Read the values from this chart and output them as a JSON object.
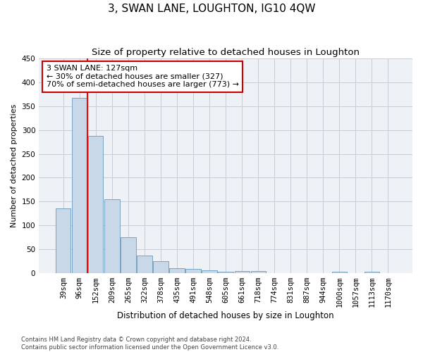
{
  "title": "3, SWAN LANE, LOUGHTON, IG10 4QW",
  "subtitle": "Size of property relative to detached houses in Loughton",
  "xlabel": "Distribution of detached houses by size in Loughton",
  "ylabel": "Number of detached properties",
  "categories": [
    "39sqm",
    "96sqm",
    "152sqm",
    "209sqm",
    "265sqm",
    "322sqm",
    "378sqm",
    "435sqm",
    "491sqm",
    "548sqm",
    "605sqm",
    "661sqm",
    "718sqm",
    "774sqm",
    "831sqm",
    "887sqm",
    "944sqm",
    "1000sqm",
    "1057sqm",
    "1113sqm",
    "1170sqm"
  ],
  "values": [
    136,
    368,
    288,
    155,
    75,
    37,
    25,
    10,
    8,
    6,
    3,
    4,
    4,
    0,
    0,
    0,
    0,
    3,
    0,
    3,
    0
  ],
  "bar_color": "#c8d8e8",
  "bar_edge_color": "#6699bb",
  "annotation_text": "3 SWAN LANE: 127sqm\n← 30% of detached houses are smaller (327)\n70% of semi-detached houses are larger (773) →",
  "annotation_box_color": "#ffffff",
  "annotation_box_edge_color": "#cc0000",
  "footer_line1": "Contains HM Land Registry data © Crown copyright and database right 2024.",
  "footer_line2": "Contains public sector information licensed under the Open Government Licence v3.0.",
  "ylim": [
    0,
    450
  ],
  "yticks": [
    0,
    50,
    100,
    150,
    200,
    250,
    300,
    350,
    400,
    450
  ],
  "bg_color": "#eef2f7",
  "grid_color": "#c8cdd5",
  "title_fontsize": 11,
  "subtitle_fontsize": 9.5,
  "axis_label_fontsize": 8,
  "tick_fontsize": 7.5,
  "red_line_index": 1.5
}
